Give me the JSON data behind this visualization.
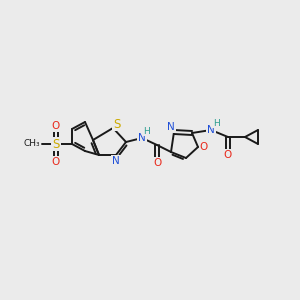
{
  "background_color": "#ebebeb",
  "bond_color": "#1a1a1a",
  "atom_colors": {
    "N": "#1f4fd8",
    "O": "#e8291c",
    "S": "#ccaa00",
    "H": "#2a9d8f",
    "C": "#1a1a1a"
  },
  "figsize": [
    3.0,
    3.0
  ],
  "dpi": 100
}
